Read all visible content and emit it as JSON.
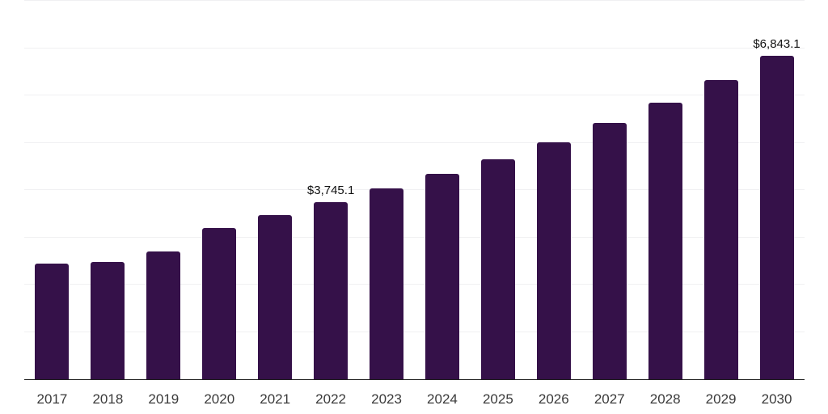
{
  "chart_data": {
    "type": "bar",
    "title": "",
    "xlabel": "",
    "ylabel": "",
    "categories": [
      "2017",
      "2018",
      "2019",
      "2020",
      "2021",
      "2022",
      "2023",
      "2024",
      "2025",
      "2026",
      "2027",
      "2028",
      "2029",
      "2030"
    ],
    "values": [
      2440,
      2485,
      2695,
      3190,
      3475,
      3745.1,
      4035,
      4345,
      4655,
      5015,
      5415,
      5850,
      6325,
      6843.1
    ],
    "data_labels": [
      "",
      "",
      "",
      "",
      "",
      "$3,745.1",
      "",
      "",
      "",
      "",
      "",
      "",
      "",
      "$6,843.1"
    ],
    "ylim": [
      0,
      8000
    ],
    "gridline_step": 1000,
    "grid": "horizontal",
    "y_tick_labels_visible": false,
    "legend_position": "none",
    "colors": {
      "bar": "#351149",
      "gridline": "#f0f0f2",
      "axis_line": "#1f1f1f",
      "tick_label": "#3a3a3a",
      "value_label": "#111111",
      "background": "#ffffff"
    }
  }
}
